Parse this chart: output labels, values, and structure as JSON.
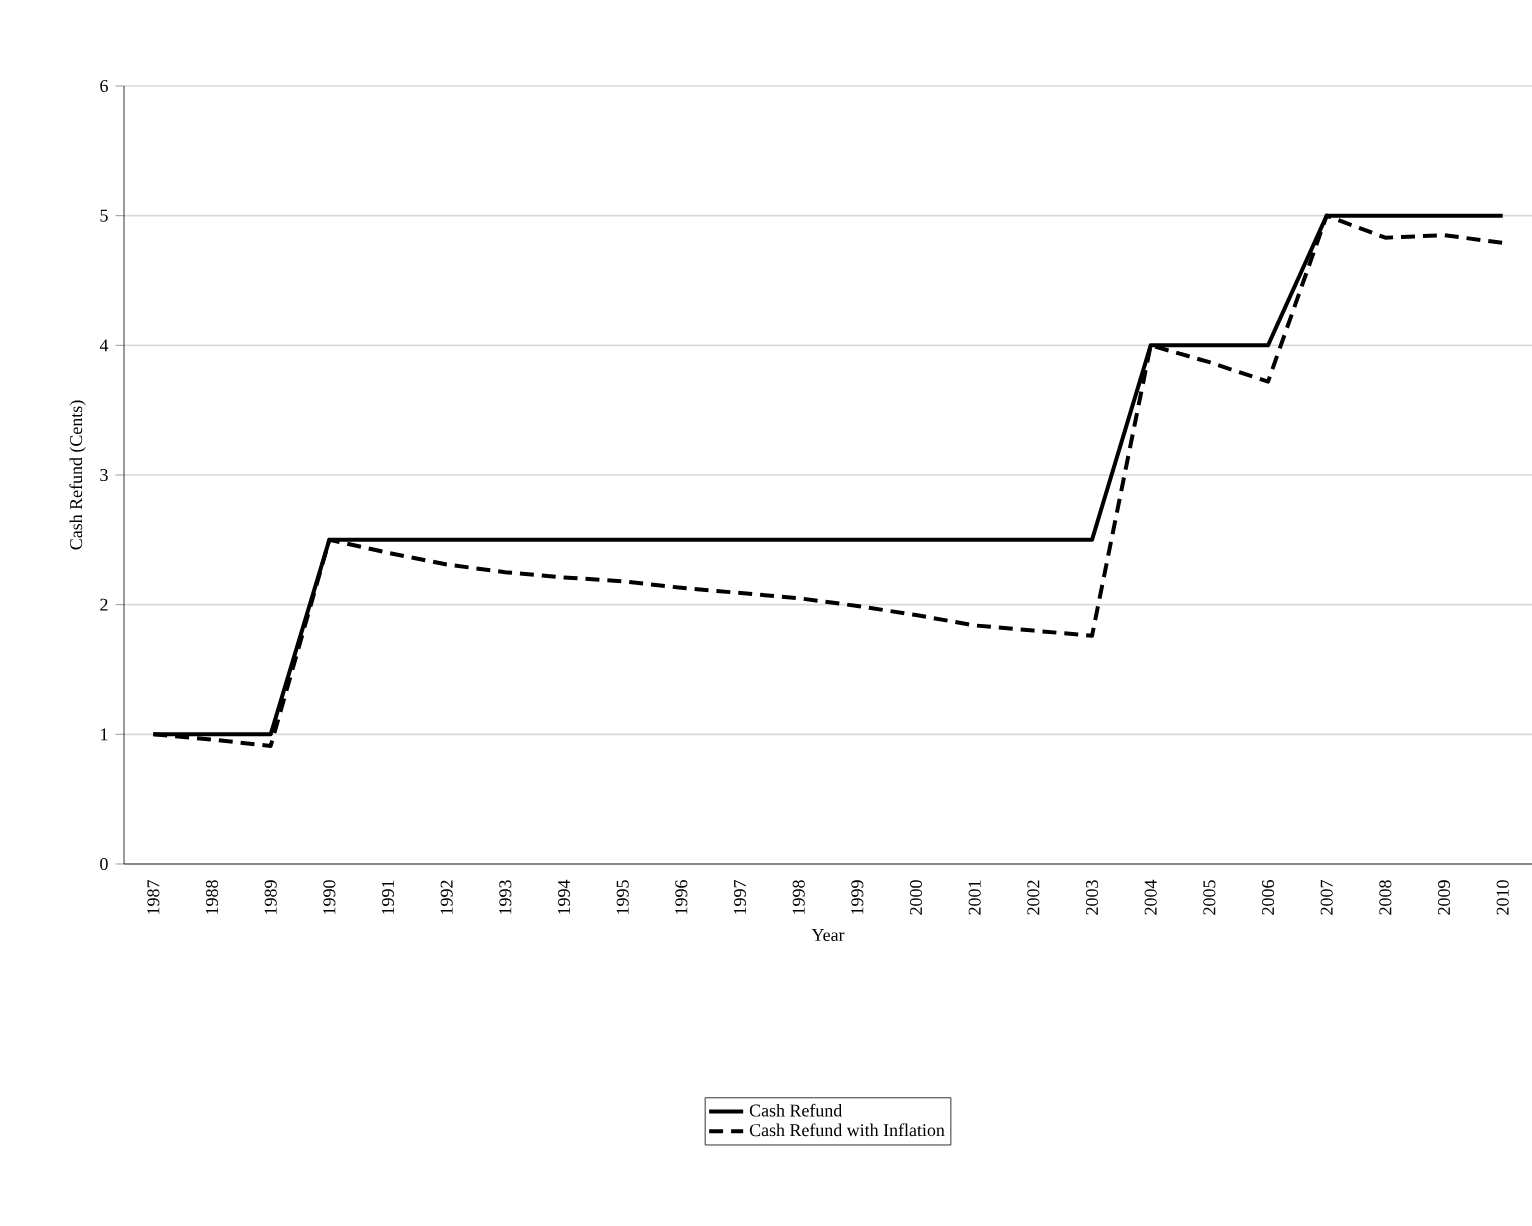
{
  "chart_data": {
    "type": "line",
    "xlabel": "Year",
    "ylabel": "Cash Refund (Cents)",
    "categories": [
      "1987",
      "1988",
      "1989",
      "1990",
      "1991",
      "1992",
      "1993",
      "1994",
      "1995",
      "1996",
      "1997",
      "1998",
      "1999",
      "2000",
      "2001",
      "2002",
      "2003",
      "2004",
      "2005",
      "2006",
      "2007",
      "2008",
      "2009",
      "2010"
    ],
    "series": [
      {
        "name": "Cash Refund",
        "color": "#000000",
        "line_style": "solid",
        "values": [
          1,
          1,
          1,
          2.5,
          2.5,
          2.5,
          2.5,
          2.5,
          2.5,
          2.5,
          2.5,
          2.5,
          2.5,
          2.5,
          2.5,
          2.5,
          2.5,
          4,
          4,
          4,
          5,
          5,
          5,
          5
        ]
      },
      {
        "name": "Cash Refund with Inflation",
        "color": "#000000",
        "line_style": "dashed",
        "values": [
          1,
          0.96,
          0.91,
          2.5,
          2.4,
          2.31,
          2.25,
          2.21,
          2.18,
          2.13,
          2.09,
          2.05,
          1.99,
          1.92,
          1.84,
          1.8,
          1.76,
          4,
          3.87,
          3.72,
          5,
          4.83,
          4.85,
          4.79
        ]
      }
    ],
    "ylim": [
      0,
      6
    ],
    "yticks": [
      0,
      1,
      2,
      3,
      4,
      5,
      6
    ],
    "grid": "y",
    "legend": "bottom",
    "marker": "none"
  }
}
